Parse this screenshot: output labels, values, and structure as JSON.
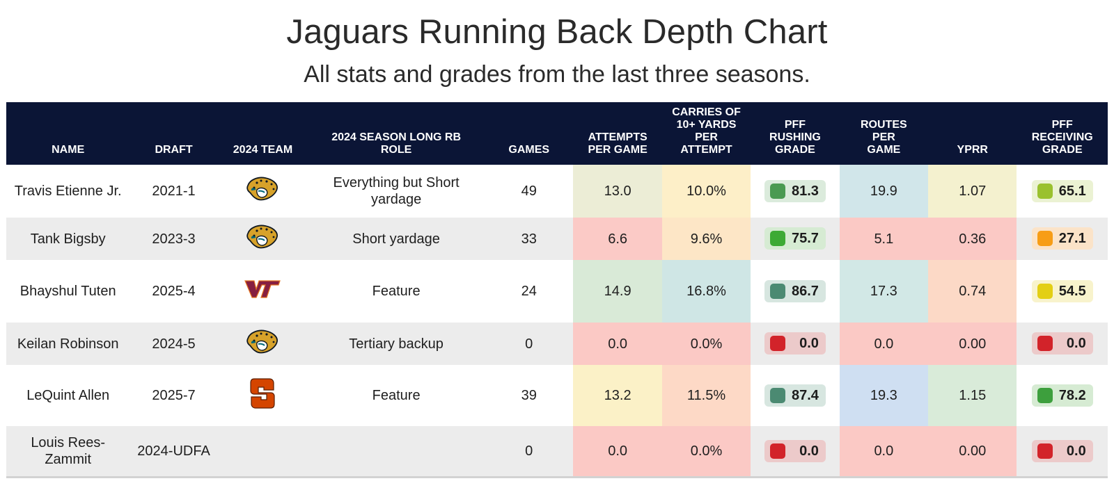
{
  "title": "Jaguars Running Back Depth Chart",
  "subtitle": "All stats and grades from the last three seasons.",
  "headers": {
    "name": "NAME",
    "draft": "DRAFT",
    "team": "2024 TEAM",
    "role": "2024 SEASON LONG RB ROLE",
    "games": "GAMES",
    "attempts": "ATTEMPTS PER GAME",
    "carries": "CARRIES OF 10+ YARDS PER ATTEMPT",
    "rushing": "PFF RUSHING GRADE",
    "routes": "ROUTES PER GAME",
    "yprr": "YPRR",
    "receiving": "PFF RECEIVING GRADE"
  },
  "team_logos": {
    "jaguars": "jaguar-head-logo",
    "virginia_tech": "vt-logo",
    "syracuse": "syracuse-s-logo"
  },
  "rows": [
    {
      "name": "Travis Etienne Jr.",
      "draft": "2021-1",
      "team_logo": "jaguars",
      "role": "Everything but Short yardage",
      "games": "49",
      "attempts": "13.0",
      "attempts_bg": "#ecedd6",
      "carries": "10.0%",
      "carries_bg": "#fdefc8",
      "rushing": "81.3",
      "rushing_dot": "#4a9a52",
      "rushing_bg": "#dbebdc",
      "routes": "19.9",
      "routes_bg": "#d1e6ea",
      "yprr": "1.07",
      "yprr_bg": "#f4f1cf",
      "receiving": "65.1",
      "receiving_dot": "#9ac12e",
      "receiving_bg": "#ebf2d3"
    },
    {
      "name": "Tank Bigsby",
      "draft": "2023-3",
      "team_logo": "jaguars",
      "role": "Short yardage",
      "games": "33",
      "attempts": "6.6",
      "attempts_bg": "#fbcac6",
      "carries": "9.6%",
      "carries_bg": "#fde6c6",
      "rushing": "75.7",
      "rushing_dot": "#3daa35",
      "rushing_bg": "#d6ebd3",
      "routes": "5.1",
      "routes_bg": "#fbc9c5",
      "yprr": "0.36",
      "yprr_bg": "#fbc9c5",
      "receiving": "27.1",
      "receiving_dot": "#f79d16",
      "receiving_bg": "#fbe3c8"
    },
    {
      "name": "Bhayshul Tuten",
      "draft": "2025-4",
      "team_logo": "virginia_tech",
      "role": "Feature",
      "games": "24",
      "attempts": "14.9",
      "attempts_bg": "#d9ead7",
      "carries": "16.8%",
      "carries_bg": "#cfe6e5",
      "rushing": "86.7",
      "rushing_dot": "#4b8a72",
      "rushing_bg": "#d7e6e0",
      "routes": "17.3",
      "routes_bg": "#d2e8e6",
      "yprr": "0.74",
      "yprr_bg": "#fcd9c6",
      "receiving": "54.5",
      "receiving_dot": "#e3cf14",
      "receiving_bg": "#f8f3cc"
    },
    {
      "name": "Keilan Robinson",
      "draft": "2024-5",
      "team_logo": "jaguars",
      "role": "Tertiary backup",
      "games": "0",
      "attempts": "0.0",
      "attempts_bg": "#fbc9c5",
      "carries": "0.0%",
      "carries_bg": "#fbc9c5",
      "rushing": "0.0",
      "rushing_dot": "#d2232a",
      "rushing_bg": "#eccaca",
      "routes": "0.0",
      "routes_bg": "#fbc9c5",
      "yprr": "0.00",
      "yprr_bg": "#fbc9c5",
      "receiving": "0.0",
      "receiving_dot": "#d2232a",
      "receiving_bg": "#eccaca"
    },
    {
      "name": "LeQuint Allen",
      "draft": "2025-7",
      "team_logo": "syracuse",
      "role": "Feature",
      "games": "39",
      "attempts": "13.2",
      "attempts_bg": "#fbf1c7",
      "carries": "11.5%",
      "carries_bg": "#fdd9c6",
      "rushing": "87.4",
      "rushing_dot": "#4b8a72",
      "rushing_bg": "#d7e6e0",
      "routes": "19.3",
      "routes_bg": "#cfdff2",
      "yprr": "1.15",
      "yprr_bg": "#d9ebd9",
      "receiving": "78.2",
      "receiving_dot": "#3d9f3d",
      "receiving_bg": "#d6ebd3"
    },
    {
      "name": "Louis Rees-Zammit",
      "draft": "2024-UDFA",
      "team_logo": "",
      "role": "",
      "games": "0",
      "attempts": "0.0",
      "attempts_bg": "#fbc9c5",
      "carries": "0.0%",
      "carries_bg": "#fbc9c5",
      "rushing": "0.0",
      "rushing_dot": "#d2232a",
      "rushing_bg": "#eccaca",
      "routes": "0.0",
      "routes_bg": "#fbc9c5",
      "yprr": "0.00",
      "yprr_bg": "#fbc9c5",
      "receiving": "0.0",
      "receiving_dot": "#d2232a",
      "receiving_bg": "#eccaca"
    }
  ]
}
